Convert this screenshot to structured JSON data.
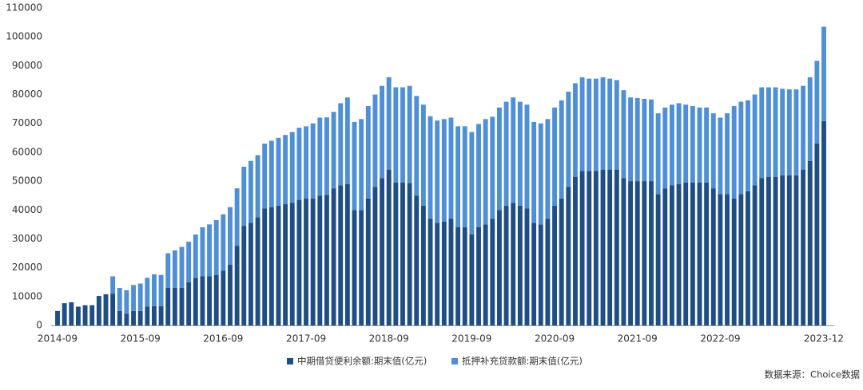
{
  "chart_data": {
    "type": "stacked_bar",
    "categories": [
      "2014-09",
      null,
      null,
      null,
      null,
      null,
      null,
      null,
      null,
      null,
      null,
      null,
      "2015-09",
      null,
      null,
      null,
      null,
      null,
      null,
      null,
      null,
      null,
      null,
      null,
      "2016-09",
      null,
      null,
      null,
      null,
      null,
      null,
      null,
      null,
      null,
      null,
      null,
      "2017-09",
      null,
      null,
      null,
      null,
      null,
      null,
      null,
      null,
      null,
      null,
      null,
      "2018-09",
      null,
      null,
      null,
      null,
      null,
      null,
      null,
      null,
      null,
      null,
      null,
      "2019-09",
      null,
      null,
      null,
      null,
      null,
      null,
      null,
      null,
      null,
      null,
      null,
      "2020-09",
      null,
      null,
      null,
      null,
      null,
      null,
      null,
      null,
      null,
      null,
      null,
      "2021-09",
      null,
      null,
      null,
      null,
      null,
      null,
      null,
      null,
      null,
      null,
      null,
      "2022-09",
      null,
      null,
      null,
      null,
      null,
      null,
      null,
      null,
      null,
      null,
      null,
      null,
      null,
      null,
      "2023-12"
    ],
    "series": [
      {
        "name": "中期借贷便利余额:期末值(亿元)",
        "color": "#1f4e85",
        "values": [
          5000,
          7700,
          8000,
          6500,
          7000,
          7000,
          10200,
          10800,
          11000,
          5000,
          4000,
          5000,
          5000,
          6500,
          6700,
          6700,
          13000,
          13000,
          13000,
          15000,
          16500,
          17000,
          17000,
          17500,
          19000,
          21000,
          27500,
          34500,
          35500,
          37500,
          40500,
          41000,
          41500,
          42000,
          42500,
          43500,
          44000,
          44000,
          45000,
          45200,
          47500,
          48500,
          49000,
          40000,
          40000,
          44000,
          48000,
          51000,
          54000,
          49500,
          49500,
          49300,
          45000,
          41500,
          37000,
          35500,
          36000,
          37000,
          34000,
          34000,
          31500,
          34000,
          35000,
          36900,
          40000,
          41500,
          42500,
          41500,
          40500,
          35500,
          35000,
          37000,
          41500,
          44000,
          48000,
          51500,
          53500,
          53500,
          53500,
          54000,
          54000,
          54000,
          51000,
          50000,
          50000,
          50000,
          50000,
          45500,
          47500,
          48500,
          49000,
          49500,
          49500,
          49500,
          49500,
          47500,
          45500,
          45500,
          44000,
          45500,
          46500,
          48500,
          51000,
          51500,
          51500,
          52000,
          52000,
          52000,
          54000,
          57000,
          63000,
          70800
        ]
      },
      {
        "name": "抵押补充贷款额:期末值(亿元)",
        "color": "#4e8fd6",
        "values": [
          0,
          0,
          0,
          0,
          0,
          0,
          0,
          0,
          6000,
          8000,
          8200,
          9000,
          9500,
          10000,
          11000,
          10800,
          12000,
          13000,
          14200,
          14000,
          15000,
          17000,
          18000,
          19000,
          19500,
          20000,
          20000,
          20500,
          21500,
          21500,
          22500,
          23000,
          23500,
          24000,
          24500,
          25000,
          25000,
          26000,
          27000,
          26900,
          26500,
          28500,
          30000,
          30500,
          31500,
          32000,
          32000,
          32000,
          32000,
          33000,
          33000,
          33700,
          34500,
          35000,
          35500,
          35500,
          35500,
          35000,
          35000,
          35000,
          35500,
          35800,
          36500,
          35400,
          35500,
          36000,
          36500,
          36000,
          36000,
          35000,
          35000,
          34500,
          34000,
          34000,
          33000,
          32400,
          32500,
          32000,
          32000,
          32000,
          31500,
          31000,
          30500,
          29000,
          28800,
          28500,
          28300,
          28000,
          28000,
          28000,
          28000,
          27000,
          26500,
          26000,
          26000,
          26000,
          26500,
          28000,
          32000,
          32000,
          31500,
          31500,
          31500,
          31000,
          31000,
          30000,
          29800,
          29800,
          29000,
          29000,
          28700,
          32700
        ]
      }
    ],
    "ylim": [
      0,
      110000
    ],
    "yticks": [
      0,
      10000,
      20000,
      30000,
      40000,
      50000,
      60000,
      70000,
      80000,
      90000,
      100000,
      110000
    ],
    "grid": false,
    "legend": "bottom",
    "source": "数据来源：Choice数据"
  }
}
